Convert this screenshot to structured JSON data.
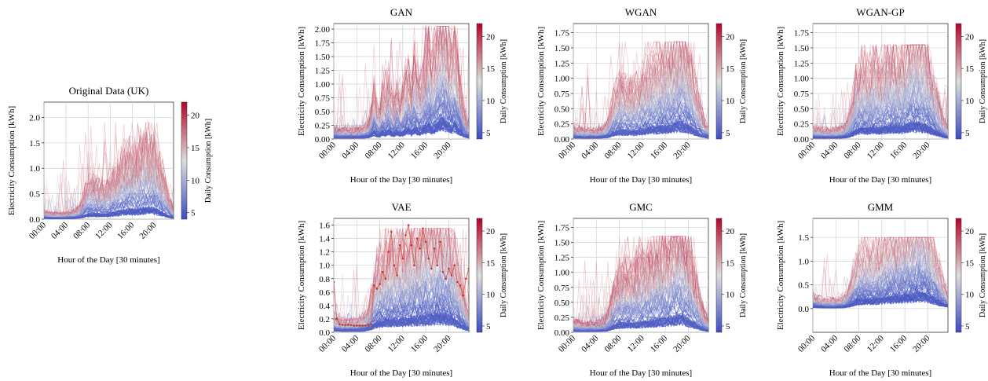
{
  "colors": {
    "cmap_low": "#3b4cc0",
    "cmap_mid": "#dddddd",
    "cmap_high": "#b40426",
    "grid": "#d0d0d0",
    "axis": "#333333"
  },
  "chart_data": [
    {
      "id": "original",
      "type": "line",
      "title": "Original Data (UK)",
      "xlabel": "Hour of the Day [30 minutes]",
      "ylabel": "Electricity Consumption [kWh]",
      "colorbar_label": "Daily Consumption [kWh]",
      "colorbar_ticks": [
        "5",
        "10",
        "15",
        "20"
      ],
      "colorbar_range": [
        4,
        22
      ],
      "x_ticks": [
        "00:00",
        "04:00",
        "08:00",
        "12:00",
        "16:00",
        "20:00"
      ],
      "y_ticks": [
        "0.0",
        "0.5",
        "1.0",
        "1.5",
        "2.0"
      ],
      "ylim": [
        0,
        2.3
      ],
      "grid": true,
      "profile": [
        0.08,
        0.07,
        0.07,
        0.06,
        0.06,
        0.06,
        0.06,
        0.06,
        0.06,
        0.07,
        0.07,
        0.08,
        0.1,
        0.14,
        0.2,
        0.3,
        0.35,
        0.38,
        0.36,
        0.35,
        0.34,
        0.33,
        0.34,
        0.35,
        0.38,
        0.42,
        0.46,
        0.5,
        0.55,
        0.6,
        0.62,
        0.63,
        0.62,
        0.6,
        0.62,
        0.68,
        0.72,
        0.75,
        0.76,
        0.74,
        0.7,
        0.62,
        0.55,
        0.45,
        0.35,
        0.25,
        0.15,
        0.1
      ],
      "peak": 1.9,
      "highlight": null
    },
    {
      "id": "gan",
      "type": "line",
      "title": "GAN",
      "xlabel": "Hour of the Day [30 minutes]",
      "ylabel": "Electricity Consumption [kWh]",
      "colorbar_label": "Daily Consumption [kWh]",
      "colorbar_ticks": [
        "5",
        "10",
        "15",
        "20"
      ],
      "colorbar_range": [
        4,
        22
      ],
      "x_ticks": [
        "00:00",
        "04:00",
        "08:00",
        "12:00",
        "16:00",
        "20:00"
      ],
      "y_ticks": [
        "0.00",
        "0.25",
        "0.50",
        "0.75",
        "1.00",
        "1.25",
        "1.50",
        "1.75",
        "2.00"
      ],
      "ylim": [
        0,
        2.1
      ],
      "grid": true,
      "profile": [
        0.1,
        0.1,
        0.09,
        0.09,
        0.09,
        0.09,
        0.09,
        0.09,
        0.09,
        0.1,
        0.1,
        0.12,
        0.15,
        0.25,
        0.45,
        0.3,
        0.25,
        0.42,
        0.35,
        0.55,
        0.4,
        0.3,
        0.5,
        0.35,
        0.42,
        0.55,
        0.6,
        0.45,
        0.7,
        0.55,
        0.5,
        0.6,
        0.75,
        0.9,
        0.7,
        0.8,
        0.95,
        1.1,
        1.2,
        1.05,
        0.9,
        0.8,
        0.95,
        0.7,
        0.5,
        0.3,
        0.2,
        0.12
      ],
      "peak": 2.05,
      "highlight": null
    },
    {
      "id": "wgan",
      "type": "line",
      "title": "WGAN",
      "xlabel": "Hour of the Day [30 minutes]",
      "ylabel": "Electricity Consumption [kWh]",
      "colorbar_label": "Daily Consumption [kWh]",
      "colorbar_ticks": [
        "5",
        "10",
        "15",
        "20"
      ],
      "colorbar_range": [
        4,
        22
      ],
      "x_ticks": [
        "00:00",
        "04:00",
        "08:00",
        "12:00",
        "16:00",
        "20:00"
      ],
      "y_ticks": [
        "0.00",
        "0.25",
        "0.50",
        "0.75",
        "1.00",
        "1.25",
        "1.50",
        "1.75"
      ],
      "ylim": [
        0,
        1.9
      ],
      "grid": true,
      "profile": [
        0.1,
        0.09,
        0.09,
        0.08,
        0.08,
        0.08,
        0.08,
        0.08,
        0.08,
        0.09,
        0.1,
        0.12,
        0.16,
        0.25,
        0.35,
        0.42,
        0.45,
        0.46,
        0.45,
        0.44,
        0.43,
        0.42,
        0.44,
        0.46,
        0.5,
        0.55,
        0.58,
        0.6,
        0.62,
        0.64,
        0.66,
        0.68,
        0.7,
        0.72,
        0.75,
        0.8,
        0.85,
        0.88,
        0.86,
        0.8,
        0.72,
        0.62,
        0.5,
        0.4,
        0.3,
        0.2,
        0.14,
        0.1
      ],
      "peak": 1.6,
      "highlight": null
    },
    {
      "id": "wgan_gp",
      "type": "line",
      "title": "WGAN-GP",
      "xlabel": "Hour of the Day [30 minutes]",
      "ylabel": "Electricity Consumption [kWh]",
      "colorbar_label": "Daily Consumption [kWh]",
      "colorbar_ticks": [
        "5",
        "10",
        "15",
        "20"
      ],
      "colorbar_range": [
        4,
        22
      ],
      "x_ticks": [
        "00:00",
        "04:00",
        "08:00",
        "12:00",
        "16:00",
        "20:00"
      ],
      "y_ticks": [
        "0.00",
        "0.25",
        "0.50",
        "0.75",
        "1.00",
        "1.25",
        "1.50",
        "1.75"
      ],
      "ylim": [
        0,
        1.9
      ],
      "grid": true,
      "profile": [
        0.1,
        0.09,
        0.09,
        0.08,
        0.08,
        0.08,
        0.08,
        0.08,
        0.08,
        0.09,
        0.1,
        0.12,
        0.16,
        0.22,
        0.35,
        0.5,
        0.55,
        0.6,
        0.58,
        0.55,
        0.6,
        0.65,
        0.62,
        0.6,
        0.62,
        0.66,
        0.7,
        0.72,
        0.7,
        0.68,
        0.66,
        0.7,
        0.75,
        0.8,
        0.85,
        0.9,
        0.88,
        0.84,
        0.8,
        0.78,
        0.7,
        0.6,
        0.5,
        0.4,
        0.3,
        0.2,
        0.14,
        0.1
      ],
      "peak": 1.55,
      "highlight": null
    },
    {
      "id": "vae",
      "type": "line",
      "title": "VAE",
      "xlabel": "Hour of the Day [30 minutes]",
      "ylabel": "Electricity Consumption [kWh]",
      "colorbar_label": "Daily Consumption [kWh]",
      "colorbar_ticks": [
        "5",
        "10",
        "15",
        "20"
      ],
      "colorbar_range": [
        4,
        22
      ],
      "x_ticks": [
        "00:00",
        "04:00",
        "08:00",
        "12:00",
        "16:00",
        "20:00"
      ],
      "y_ticks": [
        "0.0",
        "0.2",
        "0.4",
        "0.6",
        "0.8",
        "1.0",
        "1.2",
        "1.4",
        "1.6"
      ],
      "ylim": [
        0,
        1.7
      ],
      "grid": true,
      "profile": [
        0.12,
        0.1,
        0.1,
        0.09,
        0.09,
        0.09,
        0.09,
        0.09,
        0.09,
        0.1,
        0.11,
        0.13,
        0.18,
        0.28,
        0.4,
        0.5,
        0.55,
        0.58,
        0.6,
        0.62,
        0.63,
        0.64,
        0.65,
        0.66,
        0.67,
        0.68,
        0.7,
        0.72,
        0.73,
        0.74,
        0.76,
        0.78,
        0.8,
        0.82,
        0.84,
        0.86,
        0.88,
        0.9,
        0.88,
        0.85,
        0.8,
        0.72,
        0.62,
        0.5,
        0.4,
        0.3,
        0.2,
        0.15
      ],
      "peak": 1.55,
      "highlight": [
        0.75,
        0.2,
        0.12,
        0.11,
        0.11,
        0.11,
        0.11,
        0.1,
        0.1,
        0.1,
        0.1,
        0.1,
        0.11,
        0.12,
        0.7,
        0.65,
        0.72,
        0.9,
        0.8,
        1.2,
        1.5,
        1.0,
        0.85,
        1.3,
        1.1,
        1.45,
        1.6,
        1.3,
        1.0,
        1.4,
        1.25,
        1.55,
        1.35,
        1.1,
        0.95,
        1.25,
        1.0,
        1.35,
        0.9,
        0.8,
        0.95,
        0.85,
        1.0,
        0.75,
        0.7,
        0.55,
        0.8,
        0.95
      ]
    },
    {
      "id": "gmc",
      "type": "line",
      "title": "GMC",
      "xlabel": "Hour of the Day [30 minutes]",
      "ylabel": "Electricity Consumption [kWh]",
      "colorbar_label": "Daily Consumption [kWh]",
      "colorbar_ticks": [
        "5",
        "10",
        "15",
        "20"
      ],
      "colorbar_range": [
        4,
        22
      ],
      "x_ticks": [
        "00:00",
        "04:00",
        "08:00",
        "12:00",
        "16:00",
        "20:00"
      ],
      "y_ticks": [
        "0.00",
        "0.25",
        "0.50",
        "0.75",
        "1.00",
        "1.25",
        "1.50",
        "1.75"
      ],
      "ylim": [
        0,
        1.9
      ],
      "grid": true,
      "profile": [
        0.1,
        0.09,
        0.09,
        0.08,
        0.08,
        0.08,
        0.08,
        0.08,
        0.08,
        0.09,
        0.1,
        0.12,
        0.16,
        0.24,
        0.36,
        0.44,
        0.48,
        0.5,
        0.52,
        0.5,
        0.48,
        0.5,
        0.52,
        0.55,
        0.58,
        0.6,
        0.62,
        0.64,
        0.66,
        0.68,
        0.7,
        0.72,
        0.74,
        0.76,
        0.8,
        0.85,
        0.9,
        0.95,
        0.9,
        0.8,
        0.7,
        0.6,
        0.5,
        0.4,
        0.3,
        0.2,
        0.14,
        0.1
      ],
      "peak": 1.6,
      "highlight": null
    },
    {
      "id": "gmm",
      "type": "line",
      "title": "GMM",
      "xlabel": "Hour of the Day [30 minutes]",
      "ylabel": "Electricity Consumption [kWh]",
      "colorbar_label": "Daily Consumption [kWh]",
      "colorbar_ticks": [
        "5",
        "10",
        "15",
        "20"
      ],
      "colorbar_range": [
        4,
        22
      ],
      "x_ticks": [
        "00:00",
        "04:00",
        "08:00",
        "12:00",
        "16:00",
        "20:00"
      ],
      "y_ticks": [
        "0.0",
        "0.5",
        "1.0",
        "1.5"
      ],
      "ylim": [
        -0.5,
        1.9
      ],
      "grid": true,
      "profile": [
        0.15,
        0.13,
        0.12,
        0.11,
        0.1,
        0.1,
        0.1,
        0.1,
        0.1,
        0.11,
        0.12,
        0.14,
        0.18,
        0.26,
        0.38,
        0.5,
        0.58,
        0.62,
        0.64,
        0.65,
        0.64,
        0.63,
        0.64,
        0.66,
        0.7,
        0.74,
        0.78,
        0.8,
        0.82,
        0.84,
        0.86,
        0.88,
        0.9,
        0.92,
        0.95,
        1.0,
        1.05,
        1.08,
        1.05,
        1.0,
        0.92,
        0.82,
        0.7,
        0.58,
        0.45,
        0.32,
        0.22,
        0.16
      ],
      "peak": 1.5,
      "highlight": null
    }
  ]
}
